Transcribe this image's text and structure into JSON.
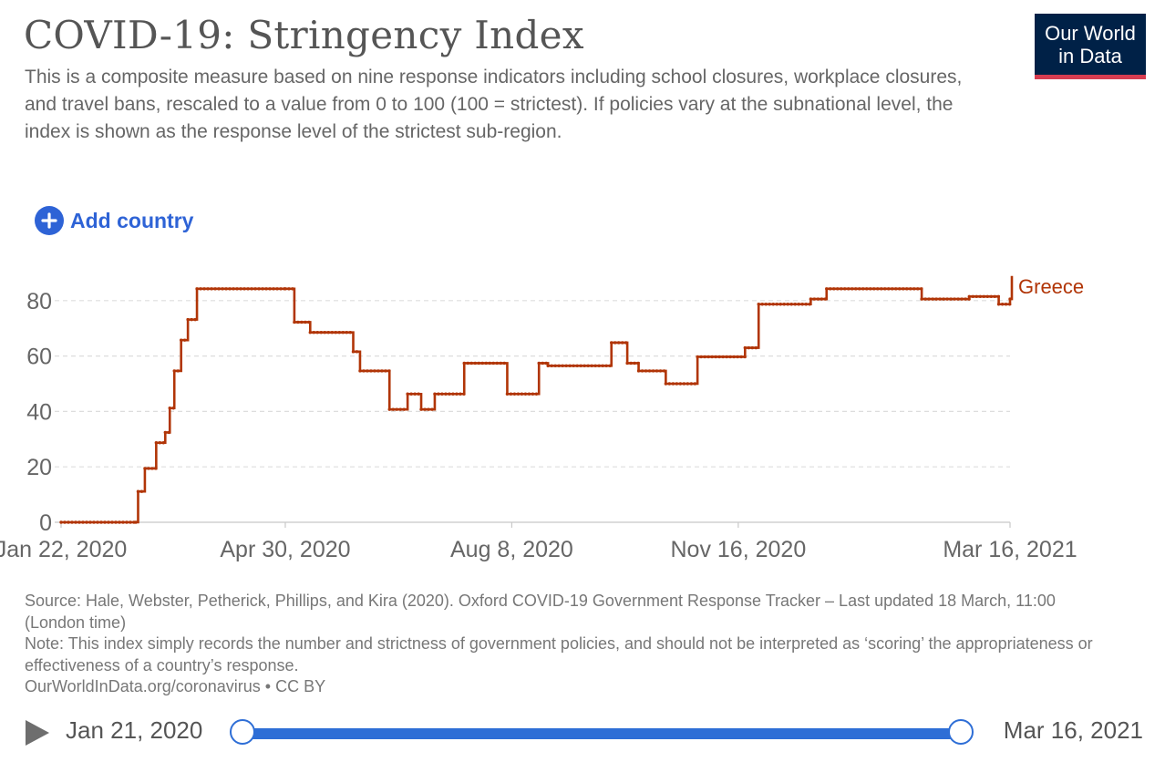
{
  "header": {
    "title": "COVID-19: Stringency Index",
    "subtitle": "This is a composite measure based on nine response indicators including school closures, workplace closures, and travel bans, rescaled to a value from 0 to 100 (100 = strictest). If policies vary at the subnational level, the index is shown as the response level of the strictest sub-region.",
    "logo_line1": "Our World",
    "logo_line2": "in Data"
  },
  "controls": {
    "add_country_label": "Add country",
    "add_icon": "plus-circle-icon"
  },
  "footer": {
    "source": "Source: Hale, Webster, Petherick, Phillips, and Kira (2020). Oxford COVID-19 Government Response Tracker – Last updated 18 March, 11:00 (London time)",
    "note": "Note: This index simply records the number and strictness of government policies, and should not be interpreted as ‘scoring’ the appropriateness or effectiveness of a country’s response.",
    "link": "OurWorldInData.org/coronavirus • CC BY"
  },
  "timeline": {
    "start_label": "Jan 21, 2020",
    "end_label": "Mar 16, 2021",
    "play_icon": "play-icon"
  },
  "colors": {
    "series": "#b13507",
    "accent": "#2e6ed6",
    "logo_bg": "#002147",
    "logo_bar": "#d73c50"
  },
  "chart_data": {
    "type": "line",
    "line_style": "step",
    "xlim": [
      "2020-01-22",
      "2021-03-16"
    ],
    "ylim": [
      0,
      90
    ],
    "x_ticks": [
      "2020-01-22",
      "2020-04-30",
      "2020-08-08",
      "2020-11-16",
      "2021-03-16"
    ],
    "x_tick_labels": [
      "Jan 22, 2020",
      "Apr 30, 2020",
      "Aug 8, 2020",
      "Nov 16, 2020",
      "Mar 16, 2021"
    ],
    "y_ticks": [
      0,
      20,
      40,
      60,
      80
    ],
    "grid": "horizontal dashed",
    "series": [
      {
        "name": "Greece",
        "color": "#b13507",
        "points": [
          [
            "2020-01-22",
            0
          ],
          [
            "2020-02-24",
            0
          ],
          [
            "2020-02-25",
            11.11
          ],
          [
            "2020-02-28",
            19.44
          ],
          [
            "2020-03-04",
            28.7
          ],
          [
            "2020-03-08",
            32.41
          ],
          [
            "2020-03-10",
            41.2
          ],
          [
            "2020-03-12",
            54.63
          ],
          [
            "2020-03-15",
            65.74
          ],
          [
            "2020-03-18",
            73.15
          ],
          [
            "2020-03-22",
            84.26
          ],
          [
            "2020-04-30",
            84.26
          ],
          [
            "2020-05-04",
            72.22
          ],
          [
            "2020-05-11",
            68.52
          ],
          [
            "2020-05-30",
            61.57
          ],
          [
            "2020-06-02",
            54.63
          ],
          [
            "2020-06-15",
            40.74
          ],
          [
            "2020-06-23",
            46.3
          ],
          [
            "2020-06-29",
            40.74
          ],
          [
            "2020-07-05",
            46.3
          ],
          [
            "2020-07-18",
            57.41
          ],
          [
            "2020-08-06",
            46.3
          ],
          [
            "2020-08-20",
            57.41
          ],
          [
            "2020-08-24",
            56.48
          ],
          [
            "2020-09-21",
            64.81
          ],
          [
            "2020-09-28",
            57.41
          ],
          [
            "2020-10-03",
            54.63
          ],
          [
            "2020-10-15",
            50
          ],
          [
            "2020-10-29",
            59.72
          ],
          [
            "2020-11-19",
            62.96
          ],
          [
            "2020-11-25",
            78.7
          ],
          [
            "2020-12-18",
            80.56
          ],
          [
            "2020-12-25",
            84.26
          ],
          [
            "2021-02-05",
            80.56
          ],
          [
            "2021-02-26",
            81.48
          ],
          [
            "2021-03-11",
            78.7
          ],
          [
            "2021-03-16",
            80.56
          ],
          [
            "2021-03-25",
            88.89
          ],
          [
            "2021-04-11",
            88.89
          ]
        ]
      }
    ]
  }
}
